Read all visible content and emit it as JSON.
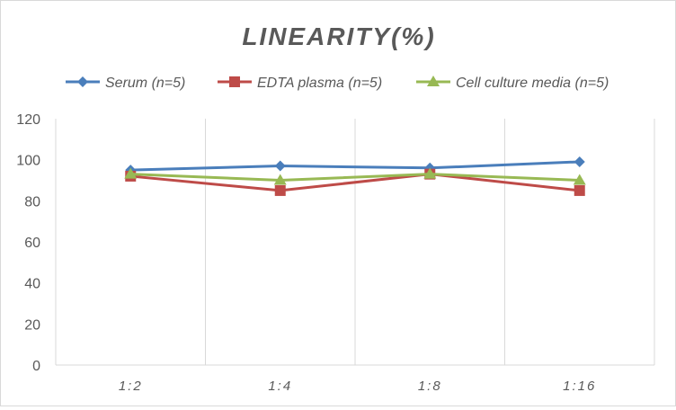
{
  "chart_data": {
    "type": "line",
    "title": "LINEARITY(%)",
    "categories": [
      "1:2",
      "1:4",
      "1:8",
      "1:16"
    ],
    "ylim": [
      0,
      120
    ],
    "yticks": [
      0,
      20,
      40,
      60,
      80,
      100,
      120
    ],
    "grid": "vertical",
    "legend": "top",
    "series": [
      {
        "name": "Serum (n=5)",
        "values": [
          95,
          97,
          96,
          99
        ],
        "color": "#4a7ebb",
        "marker": "diamond"
      },
      {
        "name": "EDTA plasma (n=5)",
        "values": [
          92,
          85,
          93,
          85
        ],
        "color": "#be4b48",
        "marker": "square"
      },
      {
        "name": "Cell culture media (n=5)",
        "values": [
          93,
          90,
          93,
          90
        ],
        "color": "#98b954",
        "marker": "triangle"
      }
    ]
  }
}
